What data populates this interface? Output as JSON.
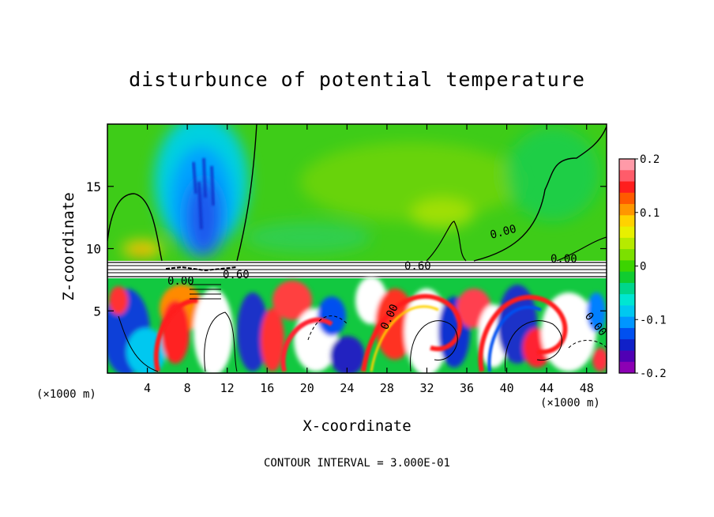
{
  "chart_data": {
    "type": "heatmap",
    "title": "disturbunce of potential temperature",
    "xlabel": "X-coordinate",
    "ylabel": "Z-coordinate",
    "x_unit_label_left": "(×1000 m)",
    "x_unit_label_right": "(×1000 m)",
    "xlim": [
      0,
      50
    ],
    "ylim": [
      0,
      20
    ],
    "x_ticks": [
      4,
      8,
      12,
      16,
      20,
      24,
      28,
      32,
      36,
      40,
      44,
      48
    ],
    "y_ticks": [
      5,
      10,
      15
    ],
    "colorbar": {
      "range": [
        -0.2,
        0.2
      ],
      "tick_values": [
        0.2,
        0.1,
        0,
        -0.1,
        -0.2
      ],
      "tick_labels": [
        "0.2",
        "0.1",
        "0",
        "-0.1",
        "-0.2"
      ],
      "colors": [
        "#ff9aa8",
        "#ff5c6a",
        "#ff1e1e",
        "#ff5a00",
        "#ff9600",
        "#ffd200",
        "#e8f000",
        "#b6ea00",
        "#7ce000",
        "#3cd400",
        "#10cc30",
        "#00d68c",
        "#00e6d2",
        "#00c8f0",
        "#0096ff",
        "#0050f0",
        "#1020c8",
        "#5000b4",
        "#8c00b4"
      ]
    },
    "contour_labels": [
      "0.00",
      "0.60",
      "0.60",
      "0.00",
      "0.00",
      "0.00",
      "0.00"
    ],
    "footnote": "CONTOUR INTERVAL = 3.000E-01",
    "grid": false
  }
}
